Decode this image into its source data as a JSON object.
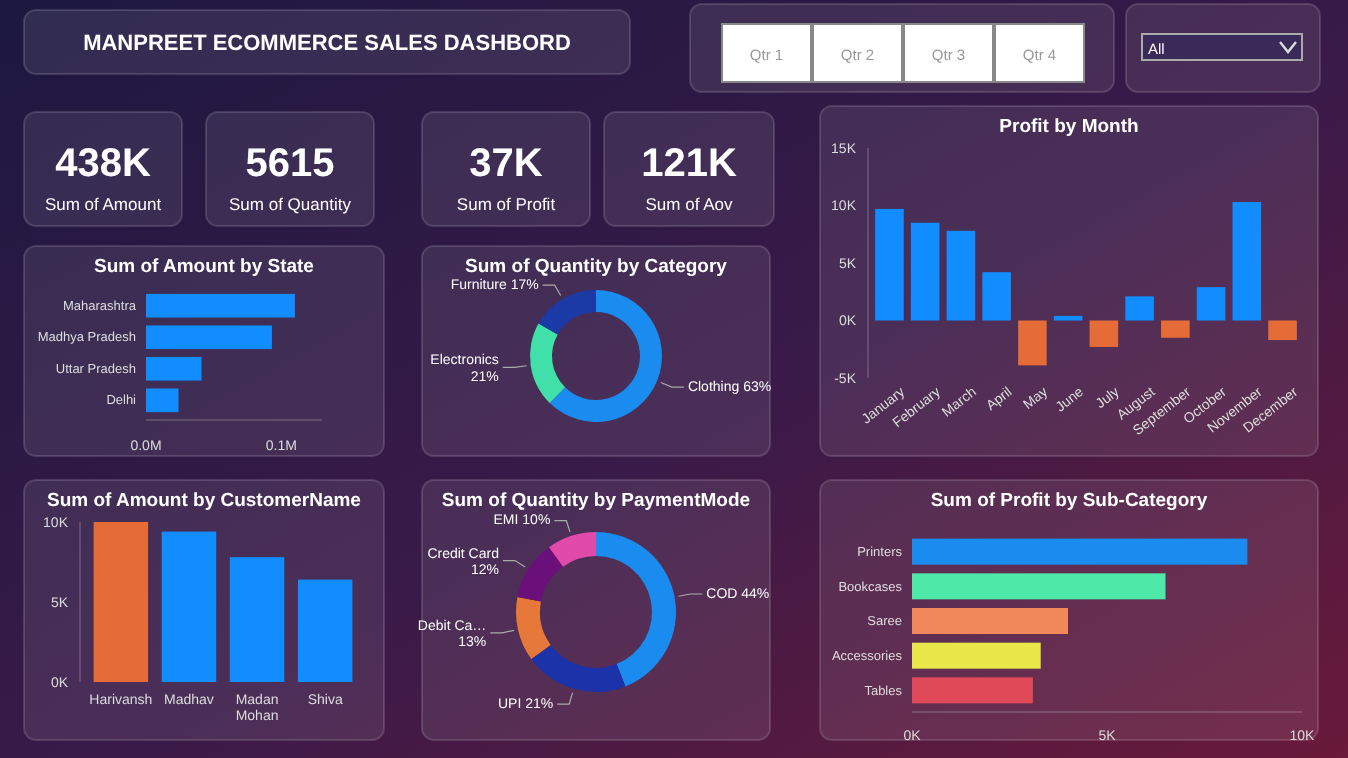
{
  "chart_data": [
    {
      "type": "other",
      "title": "MANPREET ECOMMERCE SALES DASHBORD",
      "annotations": [
        "Qtr 1",
        "Qtr 2",
        "Qtr 3",
        "Qtr 4",
        "All"
      ]
    },
    {
      "type": "other",
      "title": "Sum of Amount",
      "annotations": [
        "438K"
      ]
    },
    {
      "type": "other",
      "title": "Sum of Quantity",
      "annotations": [
        "5615"
      ]
    },
    {
      "type": "other",
      "title": "Sum of Profit",
      "annotations": [
        "37K"
      ]
    },
    {
      "type": "other",
      "title": "Sum of Aov",
      "annotations": [
        "121K"
      ]
    },
    {
      "type": "bar",
      "orientation": "horizontal",
      "title": "Sum of Amount by State",
      "categories": [
        "Maharashtra",
        "Madhya Pradesh",
        "Uttar Pradesh",
        "Delhi"
      ],
      "values": [
        0.11,
        0.093,
        0.041,
        0.024
      ],
      "color": "#118dff",
      "xlim": [
        0,
        0.13
      ],
      "xticks": [
        {
          "value": 0,
          "label": "0.0M"
        },
        {
          "value": 0.1,
          "label": "0.1M"
        }
      ]
    },
    {
      "type": "donut",
      "title": "Sum of Quantity by Category",
      "categories": [
        "Clothing",
        "Electronics",
        "Furniture"
      ],
      "values": [
        63,
        21,
        17
      ],
      "value_labels": [
        "63%",
        "21%",
        "17%"
      ],
      "colors": [
        "#1a8cf0",
        "#41e0a8",
        "#1c3aa6"
      ]
    },
    {
      "type": "bar",
      "title": "Profit by Month",
      "categories": [
        "January",
        "February",
        "March",
        "April",
        "May",
        "June",
        "July",
        "August",
        "September",
        "October",
        "November",
        "December"
      ],
      "values": [
        9.7,
        8.5,
        7.8,
        4.2,
        -3.9,
        0.4,
        -2.3,
        2.1,
        -1.5,
        2.9,
        10.3,
        -1.7
      ],
      "colors": [
        "#118dff",
        "#118dff",
        "#118dff",
        "#118dff",
        "#e66c37",
        "#118dff",
        "#e66c37",
        "#118dff",
        "#e66c37",
        "#118dff",
        "#118dff",
        "#e66c37"
      ],
      "ylim": [
        -5,
        15
      ],
      "yticks": [
        {
          "value": -5,
          "label": "-5K"
        },
        {
          "value": 0,
          "label": "0K"
        },
        {
          "value": 5,
          "label": "5K"
        },
        {
          "value": 10,
          "label": "10K"
        },
        {
          "value": 15,
          "label": "15K"
        }
      ]
    },
    {
      "type": "bar",
      "title": "Sum of Amount by CustomerName",
      "categories": [
        "Harivansh",
        "Madhav",
        "Madan Mohan",
        "Shiva"
      ],
      "values": [
        10.0,
        9.4,
        7.8,
        6.4
      ],
      "colors": [
        "#e66c37",
        "#118dff",
        "#118dff",
        "#118dff"
      ],
      "ylim": [
        0,
        10
      ],
      "yticks": [
        {
          "value": 0,
          "label": "0K"
        },
        {
          "value": 5,
          "label": "5K"
        },
        {
          "value": 10,
          "label": "10K"
        }
      ]
    },
    {
      "type": "donut",
      "title": "Sum of Quantity by PaymentMode",
      "categories": [
        "COD",
        "UPI",
        "Debit Ca…",
        "Credit Card",
        "EMI"
      ],
      "values": [
        44,
        21,
        13,
        12,
        10
      ],
      "value_labels": [
        "44%",
        "21%",
        "13%",
        "12%",
        "10%"
      ],
      "colors": [
        "#1a8cf0",
        "#1c32a8",
        "#e6793a",
        "#6b0f7b",
        "#e04aa8"
      ]
    },
    {
      "type": "bar",
      "orientation": "horizontal",
      "title": "Sum of Profit by Sub-Category",
      "categories": [
        "Printers",
        "Bookcases",
        "Saree",
        "Accessories",
        "Tables"
      ],
      "values": [
        8.6,
        6.5,
        4.0,
        3.3,
        3.1
      ],
      "colors": [
        "#1a8cf0",
        "#4ee8a8",
        "#f0885a",
        "#e8e84a",
        "#e04a58"
      ],
      "xlim": [
        0,
        10
      ],
      "xticks": [
        {
          "value": 0,
          "label": "0K"
        },
        {
          "value": 5,
          "label": "5K"
        },
        {
          "value": 10,
          "label": "10K"
        }
      ]
    }
  ]
}
